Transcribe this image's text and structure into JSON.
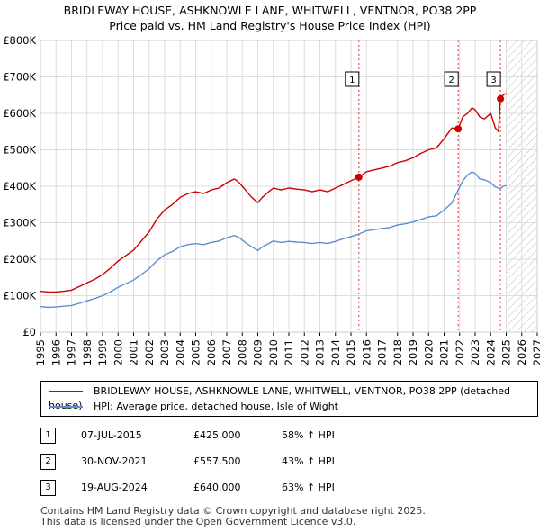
{
  "title_line1": "BRIDLEWAY HOUSE, ASHKNOWLE LANE, WHITWELL, VENTNOR, PO38 2PP",
  "title_line2": "Price paid vs. HM Land Registry's House Price Index (HPI)",
  "chart_data": {
    "type": "line",
    "xlim": [
      1995,
      2027
    ],
    "ylim": [
      0,
      800000
    ],
    "x_ticks": [
      "1995",
      "1996",
      "1997",
      "1998",
      "1999",
      "2000",
      "2001",
      "2002",
      "2003",
      "2004",
      "2005",
      "2006",
      "2007",
      "2008",
      "2009",
      "2010",
      "2011",
      "2012",
      "2013",
      "2014",
      "2015",
      "2016",
      "2017",
      "2018",
      "2019",
      "2020",
      "2021",
      "2022",
      "2023",
      "2024",
      "2025",
      "2026",
      "2027"
    ],
    "y_ticks": [
      {
        "value": 0,
        "label": "£0"
      },
      {
        "value": 100000,
        "label": "£100K"
      },
      {
        "value": 200000,
        "label": "£200K"
      },
      {
        "value": 300000,
        "label": "£300K"
      },
      {
        "value": 400000,
        "label": "£400K"
      },
      {
        "value": 500000,
        "label": "£500K"
      },
      {
        "value": 600000,
        "label": "£600K"
      },
      {
        "value": 700000,
        "label": "£700K"
      },
      {
        "value": 800000,
        "label": "£800K"
      }
    ],
    "forecast_start": 2025.0,
    "series": [
      {
        "name": "BRIDLEWAY HOUSE, ASHKNOWLE LANE, WHITWELL, VENTNOR, PO38 2PP (detached house)",
        "color": "#cc0000",
        "x": [
          1995.0,
          1995.5,
          1996.0,
          1996.5,
          1997.0,
          1997.5,
          1998.0,
          1998.5,
          1999.0,
          1999.5,
          2000.0,
          2000.5,
          2001.0,
          2001.5,
          2002.0,
          2002.5,
          2003.0,
          2003.5,
          2004.0,
          2004.5,
          2005.0,
          2005.5,
          2006.0,
          2006.5,
          2007.0,
          2007.5,
          2007.8,
          2008.2,
          2008.6,
          2009.0,
          2009.3,
          2009.7,
          2010.0,
          2010.5,
          2011.0,
          2011.5,
          2012.0,
          2012.5,
          2013.0,
          2013.5,
          2014.0,
          2014.5,
          2015.0,
          2015.51,
          2016.0,
          2016.5,
          2017.0,
          2017.5,
          2018.0,
          2018.5,
          2019.0,
          2019.5,
          2020.0,
          2020.5,
          2021.0,
          2021.5,
          2021.91,
          2022.2,
          2022.5,
          2022.8,
          2023.0,
          2023.3,
          2023.6,
          2024.0,
          2024.3,
          2024.5,
          2024.63,
          2024.8,
          2025.0
        ],
        "y": [
          112000,
          110000,
          110000,
          112000,
          115000,
          125000,
          135000,
          145000,
          158000,
          175000,
          195000,
          210000,
          225000,
          250000,
          275000,
          310000,
          335000,
          350000,
          370000,
          380000,
          385000,
          380000,
          390000,
          395000,
          410000,
          420000,
          410000,
          390000,
          370000,
          355000,
          370000,
          385000,
          395000,
          390000,
          395000,
          392000,
          390000,
          385000,
          390000,
          385000,
          395000,
          405000,
          415000,
          425000,
          440000,
          445000,
          450000,
          455000,
          465000,
          470000,
          478000,
          490000,
          500000,
          505000,
          530000,
          560000,
          557500,
          590000,
          600000,
          615000,
          610000,
          590000,
          585000,
          600000,
          560000,
          550000,
          640000,
          650000,
          655000
        ]
      },
      {
        "name": "HPI: Average price, detached house, Isle of Wight",
        "color": "#5b8fd0",
        "x": [
          1995.0,
          1995.5,
          1996.0,
          1996.5,
          1997.0,
          1997.5,
          1998.0,
          1998.5,
          1999.0,
          1999.5,
          2000.0,
          2000.5,
          2001.0,
          2001.5,
          2002.0,
          2002.5,
          2003.0,
          2003.5,
          2004.0,
          2004.5,
          2005.0,
          2005.5,
          2006.0,
          2006.5,
          2007.0,
          2007.5,
          2007.8,
          2008.2,
          2008.6,
          2009.0,
          2009.3,
          2009.7,
          2010.0,
          2010.5,
          2011.0,
          2011.5,
          2012.0,
          2012.5,
          2013.0,
          2013.5,
          2014.0,
          2014.5,
          2015.0,
          2015.51,
          2016.0,
          2016.5,
          2017.0,
          2017.5,
          2018.0,
          2018.5,
          2019.0,
          2019.5,
          2020.0,
          2020.5,
          2021.0,
          2021.5,
          2021.91,
          2022.2,
          2022.5,
          2022.8,
          2023.0,
          2023.3,
          2023.6,
          2024.0,
          2024.3,
          2024.5,
          2024.63,
          2024.8,
          2025.0
        ],
        "y": [
          70000,
          68000,
          69000,
          71000,
          73000,
          79000,
          86000,
          92000,
          100000,
          110000,
          123000,
          133000,
          143000,
          158000,
          174000,
          196000,
          212000,
          221000,
          234000,
          240000,
          243000,
          240000,
          246000,
          250000,
          259000,
          265000,
          259000,
          246000,
          234000,
          224000,
          234000,
          243000,
          250000,
          246000,
          249000,
          247000,
          246000,
          243000,
          246000,
          243000,
          249000,
          256000,
          262000,
          269000,
          278000,
          281000,
          284000,
          287000,
          294000,
          297000,
          302000,
          309000,
          316000,
          319000,
          335000,
          354000,
          390000,
          415000,
          430000,
          440000,
          435000,
          420000,
          418000,
          410000,
          398000,
          395000,
          393000,
          400000,
          402000
        ]
      }
    ],
    "sales": [
      {
        "label": "1",
        "x": 2015.51,
        "y": 425000
      },
      {
        "label": "2",
        "x": 2021.91,
        "y": 557500
      },
      {
        "label": "3",
        "x": 2024.63,
        "y": 640000
      }
    ]
  },
  "legend": {
    "property": "BRIDLEWAY HOUSE, ASHKNOWLE LANE, WHITWELL, VENTNOR, PO38 2PP (detached house)",
    "hpi": "HPI: Average price, detached house, Isle of Wight"
  },
  "transactions": [
    {
      "num": "1",
      "date": "07-JUL-2015",
      "price": "£425,000",
      "hpi": "58% ↑ HPI"
    },
    {
      "num": "2",
      "date": "30-NOV-2021",
      "price": "£557,500",
      "hpi": "43% ↑ HPI"
    },
    {
      "num": "3",
      "date": "19-AUG-2024",
      "price": "£640,000",
      "hpi": "63% ↑ HPI"
    }
  ],
  "footer_line1": "Contains HM Land Registry data © Crown copyright and database right 2025.",
  "footer_line2": "This data is licensed under the Open Government Licence v3.0.",
  "colors": {
    "property": "#cc0000",
    "hpi": "#5b8fd0",
    "grid": "#dddddd",
    "marker_line": "#cc0000"
  }
}
